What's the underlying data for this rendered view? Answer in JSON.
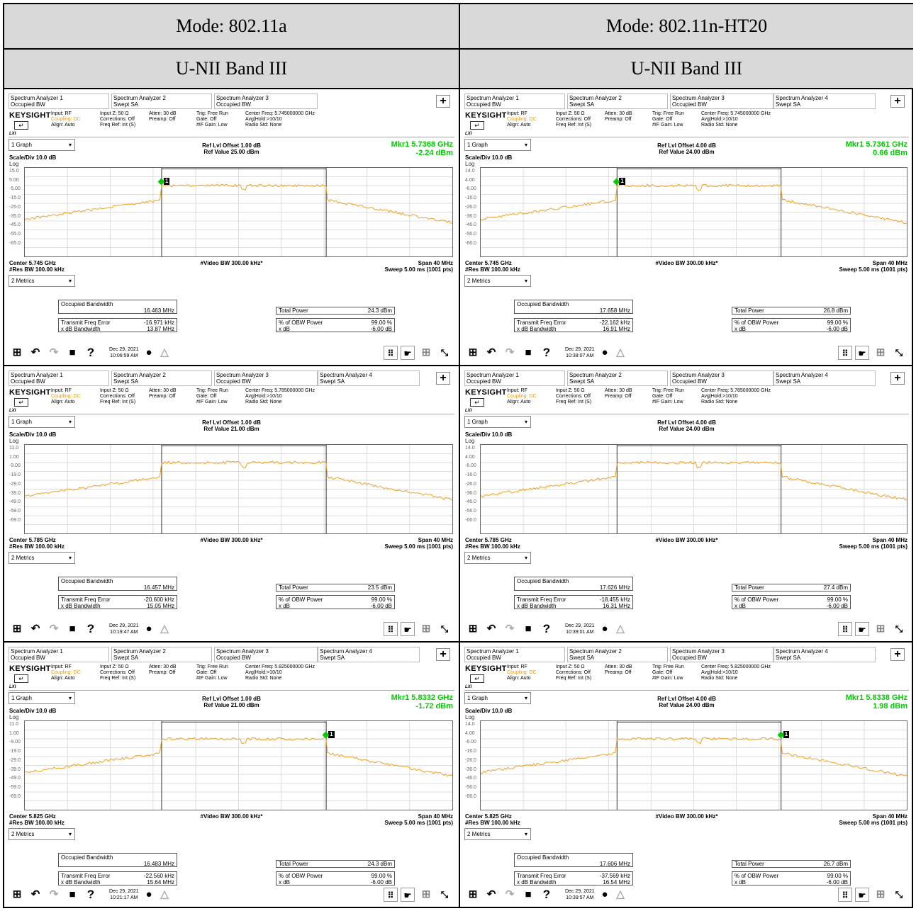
{
  "headers": {
    "mode_left": "Mode: 802.11a",
    "mode_right": "Mode: 802.11n-HT20",
    "band_left": "U-NII Band III",
    "band_right": "U-NII Band III"
  },
  "common": {
    "logo": "KEYSIGHT",
    "lxi": "LXI",
    "input": "Input: RF",
    "coupling": "Coupling: DC",
    "align": "Align: Auto",
    "input_z": "Input Z: 50 Ω",
    "corrections": "Corrections: Off",
    "freq_ref": "Freq Ref: Int (S)",
    "atten": "Atten: 30 dB",
    "preamp": "Preamp: Off",
    "trig": "Trig: Free Run",
    "gate": "Gate: Off",
    "if_gain": "#IF Gain: Low",
    "avg_hold": "Avg|Hold:>10/10",
    "radio_std": "Radio Std: None",
    "graph_dd": "1 Graph",
    "scale_div": "Scale/Div 10.0 dB",
    "log": "Log",
    "video_bw": "#Video BW 300.00 kHz*",
    "span": "Span 40 MHz",
    "res_bw": "#Res BW 100.00 kHz",
    "sweep": "Sweep 5.00 ms (1001 pts)",
    "metrics_dd": "2 Metrics",
    "obw_label": "Occupied Bandwidth",
    "tfe_label": "Transmit Freq Error",
    "xdb_bw_label": "x dB Bandwidth",
    "tp_label": "Total Power",
    "pct_obw_label": "% of OBW Power",
    "pct_obw_value": "99.00 %",
    "xdb_label": "x dB",
    "xdb_value": "-6.00 dB",
    "tab1_name": "Spectrum Analyzer 1",
    "tab1_sub": "Occupied BW",
    "tab3_name": "Spectrum Analyzer 3",
    "tab3_sub": "Occupied BW",
    "tab4_name": "Spectrum Analyzer 4",
    "tab4_sub": "Swept SA",
    "tab2_name": "Spectrum Analyzer 2",
    "tab2_sub": "Swept SA",
    "date": "Dec 29, 2021",
    "marker_num": "1",
    "plus": "+",
    "help": "?"
  },
  "screens": [
    {
      "center_freq": "Center Freq: 5.745000000 GHz",
      "ref_offset": "Ref Lvl Offset 1.00 dB",
      "ref_value": "Ref Value 25.00 dBm",
      "yticks": [
        "15.0",
        "5.00",
        "-5.00",
        "-15.0",
        "-25.0",
        "-35.0",
        "-45.0",
        "-55.0",
        "-65.0"
      ],
      "mkr_freq": "Mkr1  5.7368 GHz",
      "mkr_amp": "-2.24 dBm",
      "center": "Center 5.745 GHz",
      "obw": "16.463 MHz",
      "tfe": "-16.971 kHz",
      "xdb_bw": "13.87 MHz",
      "tp": "24.3 dBm",
      "time": "10:06:59 AM",
      "has_tab4": false,
      "show_marker": true,
      "marker_side": "left"
    },
    {
      "center_freq": "Center Freq: 5.745000000 GHz",
      "ref_offset": "Ref Lvl Offset 4.00 dB",
      "ref_value": "Ref Value 24.00 dBm",
      "yticks": [
        "14.0",
        "4.00",
        "-6.00",
        "-16.0",
        "-26.0",
        "-36.0",
        "-46.0",
        "-56.0",
        "-66.0"
      ],
      "mkr_freq": "Mkr1  5.7361 GHz",
      "mkr_amp": "0.66 dBm",
      "center": "Center 5.745 GHz",
      "obw": "17.658 MHz",
      "tfe": "-22.162 kHz",
      "xdb_bw": "16.91 MHz",
      "tp": "26.8 dBm",
      "time": "10:38:07 AM",
      "has_tab4": true,
      "show_marker": true,
      "marker_side": "left"
    },
    {
      "center_freq": "Center Freq: 5.785000000 GHz",
      "ref_offset": "Ref Lvl Offset 1.00 dB",
      "ref_value": "Ref Value 21.00 dBm",
      "yticks": [
        "11.0",
        "1.00",
        "-9.00",
        "-19.0",
        "-29.0",
        "-39.0",
        "-49.0",
        "-59.0",
        "-69.0"
      ],
      "mkr_freq": "",
      "mkr_amp": "",
      "center": "Center 5.785 GHz",
      "obw": "16.457 MHz",
      "tfe": "-20.600 kHz",
      "xdb_bw": "15.05 MHz",
      "tp": "23.5 dBm",
      "time": "10:19:47 AM",
      "has_tab4": true,
      "show_marker": false,
      "marker_side": "left"
    },
    {
      "center_freq": "Center Freq: 5.785000000 GHz",
      "ref_offset": "Ref Lvl Offset 4.00 dB",
      "ref_value": "Ref Value 24.00 dBm",
      "yticks": [
        "14.0",
        "4.00",
        "-6.00",
        "-16.0",
        "-26.0",
        "-36.0",
        "-46.0",
        "-56.0",
        "-66.0"
      ],
      "mkr_freq": "",
      "mkr_amp": "",
      "center": "Center 5.785 GHz",
      "obw": "17.626 MHz",
      "tfe": "-18.455 kHz",
      "xdb_bw": "16.31 MHz",
      "tp": "27.4 dBm",
      "time": "10:39:01 AM",
      "has_tab4": true,
      "show_marker": false,
      "marker_side": "left"
    },
    {
      "center_freq": "Center Freq: 5.825000000 GHz",
      "ref_offset": "Ref Lvl Offset 1.00 dB",
      "ref_value": "Ref Value 21.00 dBm",
      "yticks": [
        "11.0",
        "1.00",
        "-9.00",
        "-19.0",
        "-29.0",
        "-39.0",
        "-49.0",
        "-59.0",
        "-69.0"
      ],
      "mkr_freq": "Mkr1  5.8332 GHz",
      "mkr_amp": "-1.72 dBm",
      "center": "Center 5.825 GHz",
      "obw": "16.483 MHz",
      "tfe": "-22.560 kHz",
      "xdb_bw": "15.64 MHz",
      "tp": "24.3 dBm",
      "time": "10:21:17 AM",
      "has_tab4": true,
      "show_marker": true,
      "marker_side": "right"
    },
    {
      "center_freq": "Center Freq: 5.825000000 GHz",
      "ref_offset": "Ref Lvl Offset 4.00 dB",
      "ref_value": "Ref Value 24.00 dBm",
      "yticks": [
        "14.0",
        "4.00",
        "-6.00",
        "-16.0",
        "-26.0",
        "-36.0",
        "-46.0",
        "-56.0",
        "-66.0"
      ],
      "mkr_freq": "Mkr1  5.8338 GHz",
      "mkr_amp": "1.98 dBm",
      "center": "Center 5.825 GHz",
      "obw": "17.606 MHz",
      "tfe": "-37.569 kHz",
      "xdb_bw": "16.54 MHz",
      "tp": "26.7 dBm",
      "time": "10:39:57 AM",
      "has_tab4": true,
      "show_marker": true,
      "marker_side": "right"
    }
  ],
  "colors": {
    "trace": "#f0a020",
    "marker": "#00cc00",
    "header_bg": "#d9d9d9"
  }
}
